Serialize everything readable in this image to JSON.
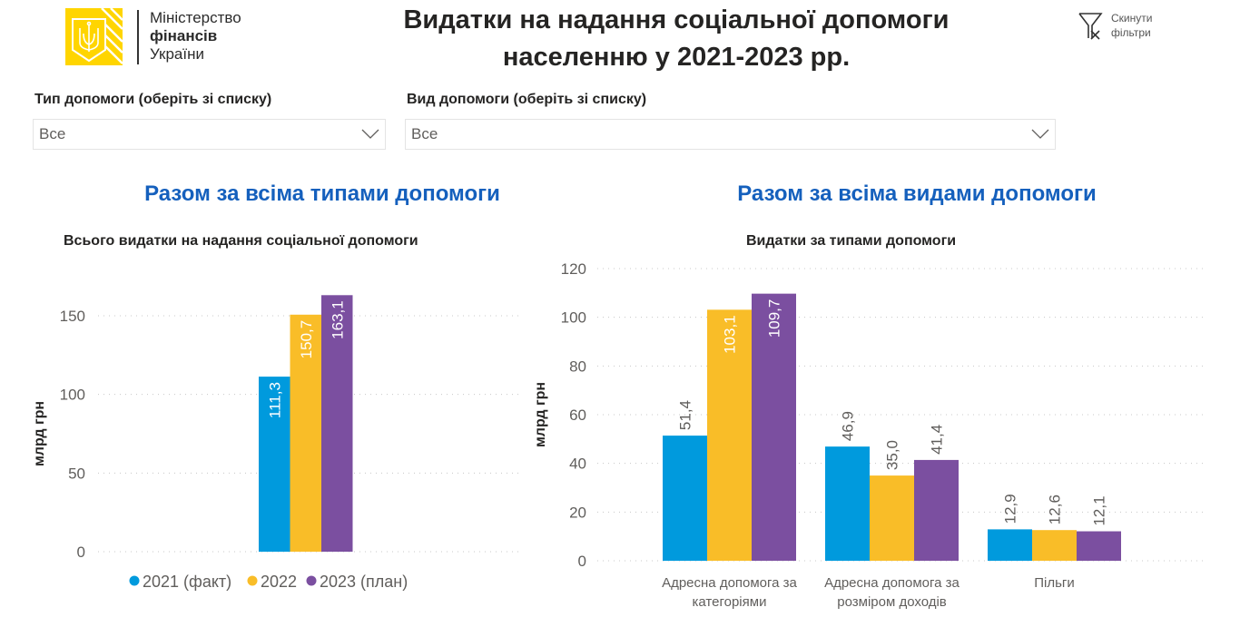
{
  "header": {
    "logo": {
      "line1": "Міністерство",
      "line2": "фінансів",
      "line3": "України",
      "brand_color": "#FFD500"
    },
    "title_line1": "Видатки на надання соціальної допомоги",
    "title_line2": "населенню у 2021-2023 рр.",
    "reset": {
      "icon": "filter-clear-icon",
      "line1": "Скинути",
      "line2": "фільтри"
    }
  },
  "filters": [
    {
      "label": "Тип допомоги (оберіть зі списку)",
      "value": "Все",
      "icon": "chevron-down-icon"
    },
    {
      "label": "Вид допомоги (оберіть зі списку)",
      "value": "Все",
      "icon": "chevron-down-icon"
    }
  ],
  "sections": {
    "left": "Разом за всіма типами допомоги",
    "right": "Разом за всіма видами допомоги"
  },
  "colors": {
    "series_2021": "#009ADD",
    "series_2022": "#F9BD28",
    "series_2023": "#7B4FA0",
    "section_title": "#1560BD"
  },
  "chart_data": [
    {
      "type": "bar",
      "title": "Всього видатки на надання соціальної допомоги",
      "xlabel": "",
      "ylabel": "млрд грн",
      "ylim": [
        0,
        170
      ],
      "yticks": [
        0,
        50,
        100,
        150
      ],
      "ytick_labels": [
        "0",
        "50",
        "100",
        "150"
      ],
      "grid": true,
      "categories": [
        ""
      ],
      "series": [
        {
          "name": "2021 (факт)",
          "values": [
            111.3
          ],
          "labels": [
            "111,3"
          ],
          "color": "#009ADD"
        },
        {
          "name": "2022",
          "values": [
            150.7
          ],
          "labels": [
            "150,7"
          ],
          "color": "#F9BD28"
        },
        {
          "name": "2023 (план)",
          "values": [
            163.1
          ],
          "labels": [
            "163,1"
          ],
          "color": "#7B4FA0"
        }
      ],
      "legend": "bottom"
    },
    {
      "type": "bar",
      "title": "Видатки за типами допомоги",
      "xlabel": "",
      "ylabel": "млрд грн",
      "ylim": [
        0,
        120
      ],
      "yticks": [
        0,
        20,
        40,
        60,
        80,
        100,
        120
      ],
      "ytick_labels": [
        "0",
        "20",
        "40",
        "60",
        "80",
        "100",
        "120"
      ],
      "grid": true,
      "categories": [
        [
          "Адресна допомога за",
          "категоріями"
        ],
        [
          "Адресна допомога за",
          "розміром доходів"
        ],
        [
          "Пільги"
        ]
      ],
      "series": [
        {
          "name": "2021 (факт)",
          "values": [
            51.4,
            46.9,
            12.9
          ],
          "labels": [
            "51,4",
            "46,9",
            "12,9"
          ],
          "color": "#009ADD"
        },
        {
          "name": "2022",
          "values": [
            103.1,
            35.0,
            12.6
          ],
          "labels": [
            "103,1",
            "35,0",
            "12,6"
          ],
          "color": "#F9BD28"
        },
        {
          "name": "2023 (план)",
          "values": [
            109.7,
            41.4,
            12.1
          ],
          "labels": [
            "109,7",
            "41,4",
            "12,1"
          ],
          "color": "#7B4FA0"
        }
      ]
    }
  ]
}
